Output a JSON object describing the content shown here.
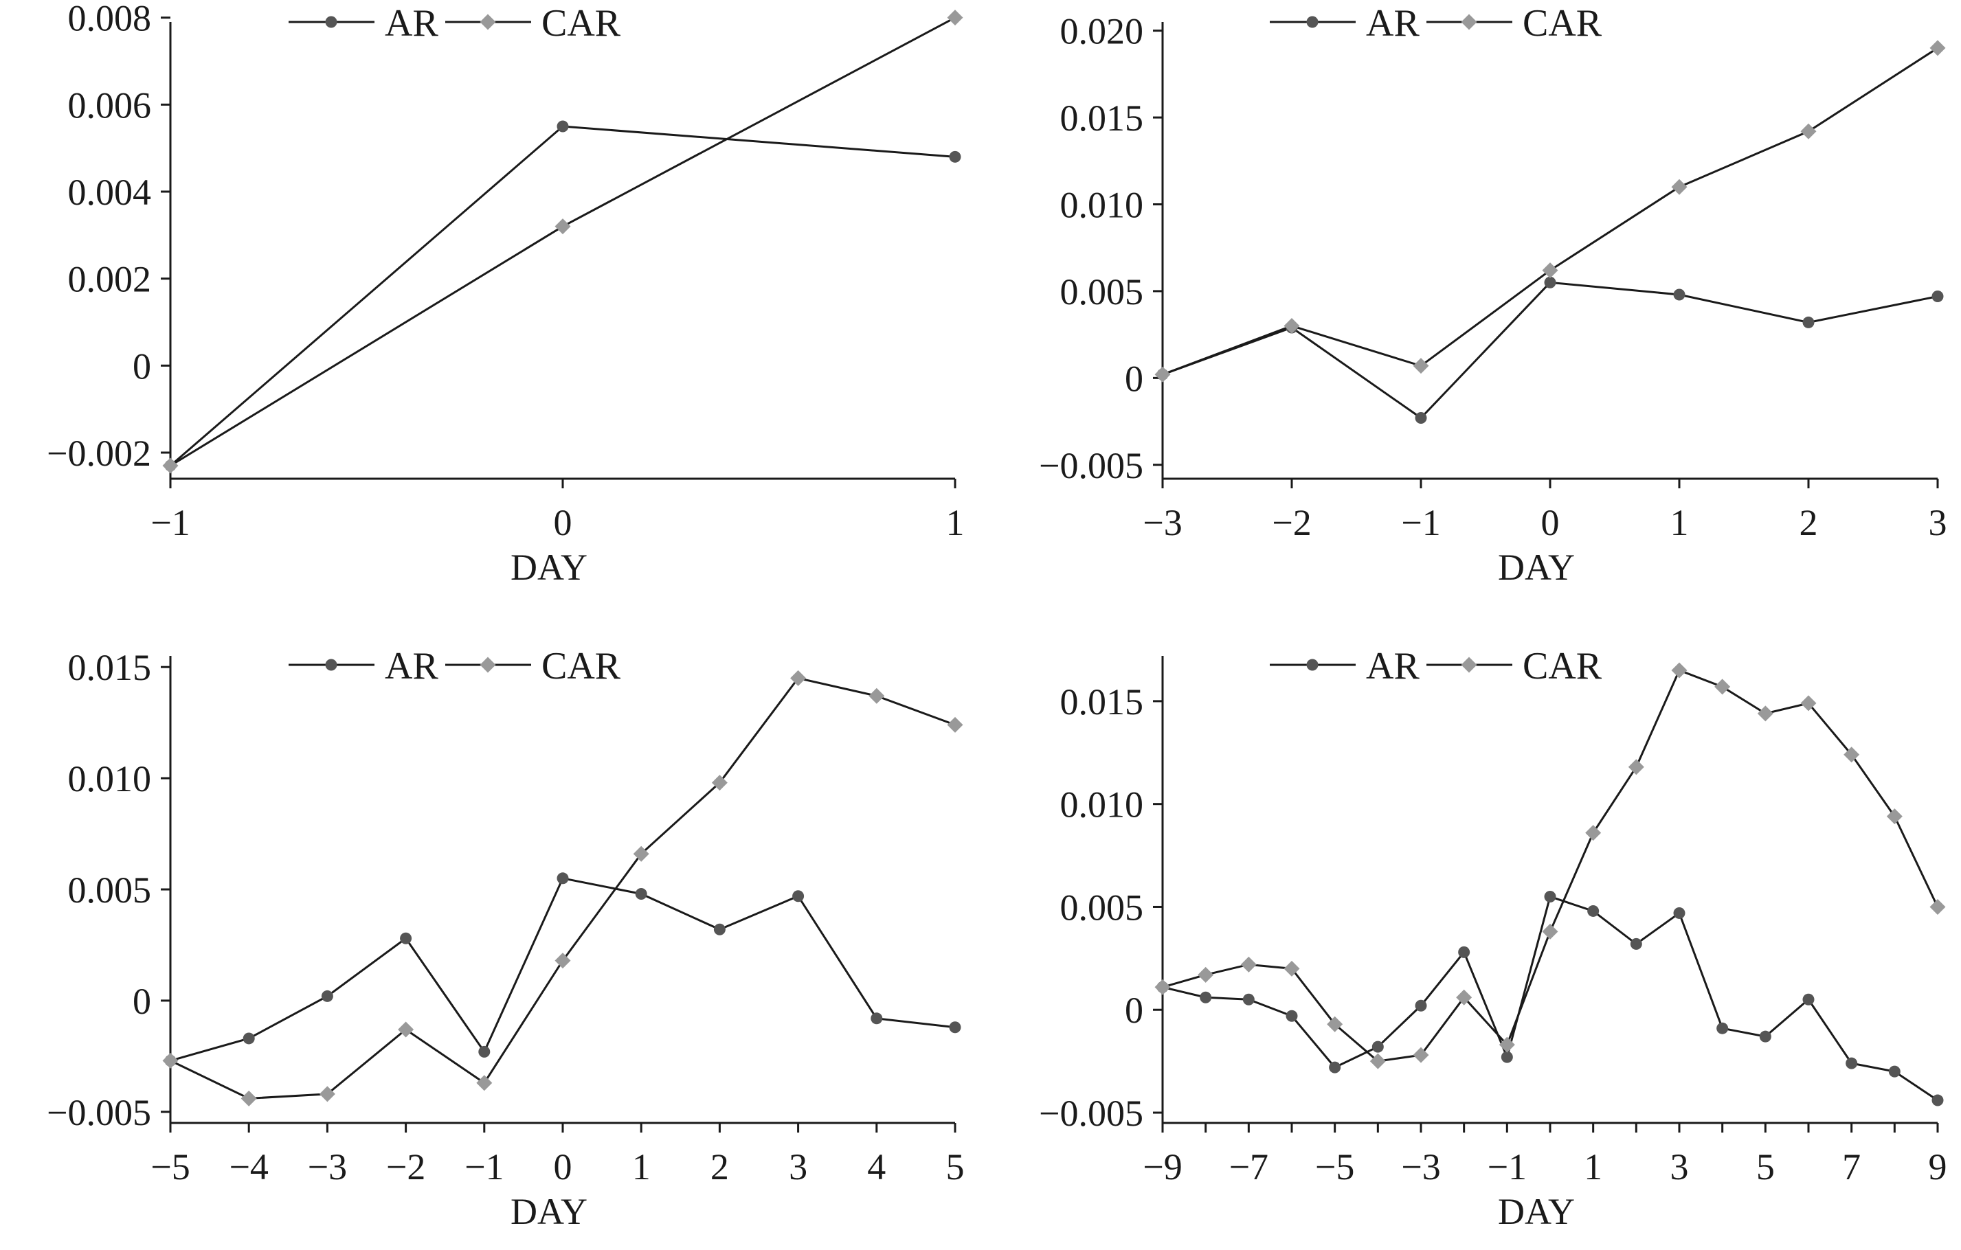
{
  "colors": {
    "ar": "#555555",
    "car": "#999999",
    "axis": "#1a1a1a",
    "line": "#1a1a1a"
  },
  "chart_data": [
    {
      "type": "line",
      "xlabel": "DAY",
      "ylabel": "",
      "x": [
        "−1",
        "0",
        "1"
      ],
      "xticks": [
        "−1",
        "0",
        "1"
      ],
      "xlim": [
        -1,
        1
      ],
      "ylim": [
        -0.0026,
        0.0079
      ],
      "yticks": [
        "−0.002",
        "0",
        "0.002",
        "0.004",
        "0.006",
        "0.008"
      ],
      "ytick_values": [
        -0.002,
        0,
        0.002,
        0.004,
        0.006,
        0.008
      ],
      "legend": "top",
      "series": [
        {
          "name": "AR",
          "marker": "circle",
          "values": [
            -0.0023,
            0.0055,
            0.0048
          ]
        },
        {
          "name": "CAR",
          "marker": "diamond",
          "values": [
            -0.0023,
            0.0032,
            0.008
          ]
        }
      ]
    },
    {
      "type": "line",
      "xlabel": "DAY",
      "ylabel": "",
      "x": [
        "−3",
        "−2",
        "−1",
        "0",
        "1",
        "2",
        "3"
      ],
      "xticks": [
        "−3",
        "−2",
        "−1",
        "0",
        "1",
        "2",
        "3"
      ],
      "xlim": [
        -3,
        3
      ],
      "ylim": [
        -0.0058,
        0.0205
      ],
      "yticks": [
        "−0.005",
        "0",
        "0.005",
        "0.010",
        "0.015",
        "0.020"
      ],
      "ytick_values": [
        -0.005,
        0,
        0.005,
        0.01,
        0.015,
        0.02
      ],
      "legend": "top",
      "series": [
        {
          "name": "AR",
          "marker": "circle",
          "values": [
            0.0002,
            0.0029,
            -0.0023,
            0.0055,
            0.0048,
            0.0032,
            0.0047
          ]
        },
        {
          "name": "CAR",
          "marker": "diamond",
          "values": [
            0.0002,
            0.003,
            0.0007,
            0.0062,
            0.011,
            0.0142,
            0.019
          ]
        }
      ]
    },
    {
      "type": "line",
      "xlabel": "DAY",
      "ylabel": "",
      "x": [
        "−5",
        "−4",
        "−3",
        "−2",
        "−1",
        "0",
        "1",
        "2",
        "3",
        "4",
        "5"
      ],
      "xticks": [
        "−5",
        "−4",
        "−3",
        "−2",
        "−1",
        "0",
        "1",
        "2",
        "3",
        "4",
        "5"
      ],
      "xlim": [
        -5,
        5
      ],
      "ylim": [
        -0.0055,
        0.0155
      ],
      "yticks": [
        "−0.005",
        "0",
        "0.005",
        "0.010",
        "0.015"
      ],
      "ytick_values": [
        -0.005,
        0,
        0.005,
        0.01,
        0.015
      ],
      "legend": "top",
      "series": [
        {
          "name": "AR",
          "marker": "circle",
          "values": [
            -0.0027,
            -0.0017,
            0.0002,
            0.0028,
            -0.0023,
            0.0055,
            0.0048,
            0.0032,
            0.0047,
            -0.0008,
            -0.0012
          ]
        },
        {
          "name": "CAR",
          "marker": "diamond",
          "values": [
            -0.0027,
            -0.0044,
            -0.0042,
            -0.0013,
            -0.0037,
            0.0018,
            0.0066,
            0.0098,
            0.0145,
            0.0137,
            0.0124
          ]
        }
      ]
    },
    {
      "type": "line",
      "xlabel": "DAY",
      "ylabel": "",
      "x": [
        "−9",
        "−8",
        "−7",
        "−6",
        "−5",
        "−4",
        "−3",
        "−2",
        "−1",
        "0",
        "1",
        "2",
        "3",
        "4",
        "5",
        "6",
        "7",
        "8",
        "9"
      ],
      "xticks": [
        "−9",
        "−7",
        "−5",
        "−3",
        "−1",
        "1",
        "3",
        "5",
        "7",
        "9"
      ],
      "xlim": [
        -9,
        9
      ],
      "ylim": [
        -0.0055,
        0.0172
      ],
      "yticks": [
        "−0.005",
        "0",
        "0.005",
        "0.010",
        "0.015"
      ],
      "ytick_values": [
        -0.005,
        0,
        0.005,
        0.01,
        0.015
      ],
      "legend": "top",
      "series": [
        {
          "name": "AR",
          "marker": "circle",
          "values": [
            0.0011,
            0.0006,
            0.0005,
            -0.0003,
            -0.0028,
            -0.0018,
            0.0002,
            0.0028,
            -0.0023,
            0.0055,
            0.0048,
            0.0032,
            0.0047,
            -0.0009,
            -0.0013,
            0.0005,
            -0.0026,
            -0.003,
            -0.0044
          ]
        },
        {
          "name": "CAR",
          "marker": "diamond",
          "values": [
            0.0011,
            0.0017,
            0.0022,
            0.002,
            -0.0007,
            -0.0025,
            -0.0022,
            0.0006,
            -0.0017,
            0.0038,
            0.0086,
            0.0118,
            0.0165,
            0.0157,
            0.0144,
            0.0149,
            0.0124,
            0.0094,
            0.005
          ]
        }
      ]
    }
  ]
}
